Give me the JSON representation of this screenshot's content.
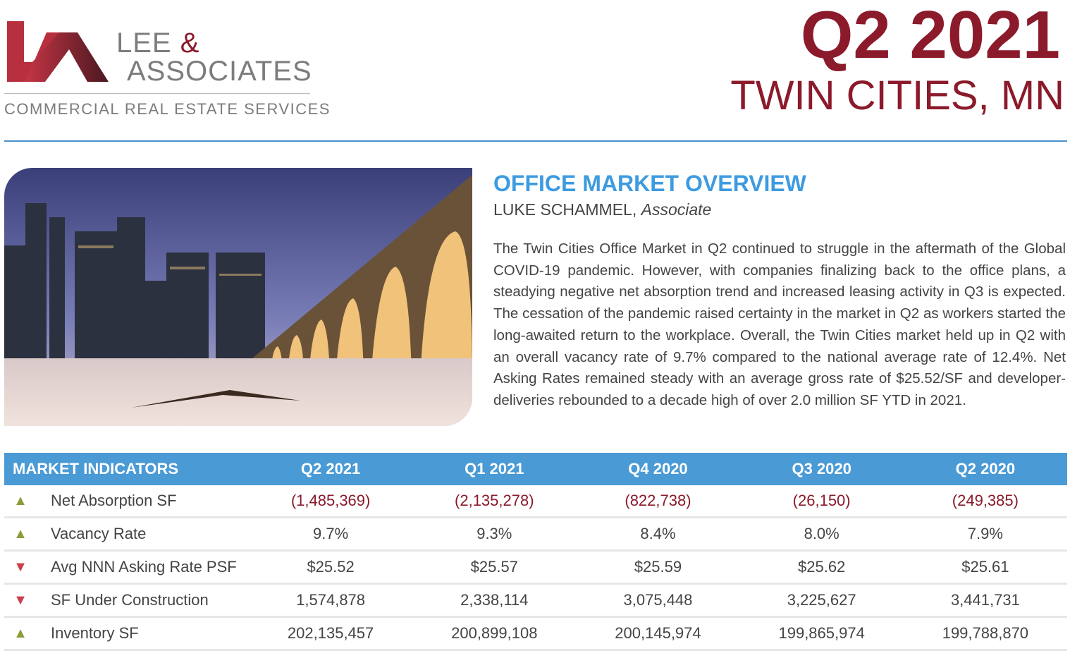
{
  "logo": {
    "line1": "LEE",
    "amp": "&",
    "line2": "ASSOCIATES",
    "subtitle": "COMMERCIAL REAL ESTATE SERVICES"
  },
  "header": {
    "quarter": "Q2 2021",
    "location": "TWIN CITIES, MN"
  },
  "overview": {
    "title": "OFFICE MARKET OVERVIEW",
    "author_name": "LUKE SCHAMMEL,",
    "author_role": "Associate",
    "body": "The Twin Cities Office Market in Q2 continued to struggle in the aftermath of the Global COVID-19 pandemic. However, with companies finalizing back to the office plans, a steadying negative net absorption trend and increased leasing activity in Q3 is expected. The cessation of the pandemic raised certainty in the market in Q2 as workers started the long-awaited return to the workplace. Overall, the Twin Cities market held up in Q2 with an overall vacancy rate of 9.7% compared to the national average rate of 12.4%. Net Asking Rates remained steady with an average gross rate of $25.52/SF and developer-deliveries rebounded to a decade high of over 2.0 million SF YTD in 2021."
  },
  "table": {
    "headers": [
      "MARKET INDICATORS",
      "Q2 2021",
      "Q1 2021",
      "Q4 2020",
      "Q3 2020",
      "Q2 2020"
    ],
    "rows": [
      {
        "trend": "up",
        "label": "Net Absorption SF",
        "values": [
          "(1,485,369)",
          "(2,135,278)",
          "(822,738)",
          "(26,150)",
          "(249,385)"
        ]
      },
      {
        "trend": "up",
        "label": "Vacancy Rate",
        "values": [
          "9.7%",
          "9.3%",
          "8.4%",
          "8.0%",
          "7.9%"
        ]
      },
      {
        "trend": "down",
        "label": "Avg NNN Asking Rate PSF",
        "values": [
          "$25.52",
          "$25.57",
          "$25.59",
          "$25.62",
          "$25.61"
        ]
      },
      {
        "trend": "down",
        "label": "SF Under Construction",
        "values": [
          "1,574,878",
          "2,338,114",
          "3,075,448",
          "3,225,627",
          "3,441,731"
        ]
      },
      {
        "trend": "up",
        "label": "Inventory SF",
        "values": [
          "202,135,457",
          "200,899,108",
          "200,145,974",
          "199,865,974",
          "199,788,870"
        ]
      }
    ]
  },
  "colors": {
    "brand_red": "#8b1a2b",
    "blue": "#4a9ad6",
    "up": "#8f9a3a",
    "down": "#c8404c"
  }
}
